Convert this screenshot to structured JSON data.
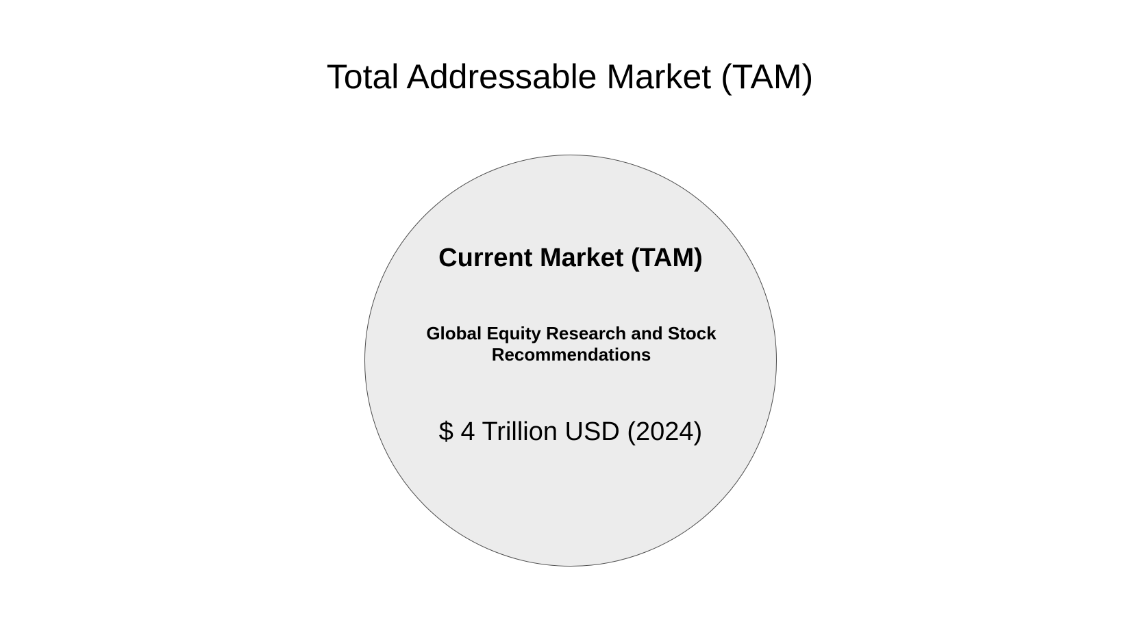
{
  "slide": {
    "title": "Total Addressable Market (TAM)"
  },
  "circle": {
    "heading": "Current Market (TAM)",
    "description": "Global Equity Research and Stock Recommendations",
    "value": "$ 4 Trillion USD (2024)",
    "fill_color": "#ececec",
    "border_color": "#4d4d4d"
  }
}
